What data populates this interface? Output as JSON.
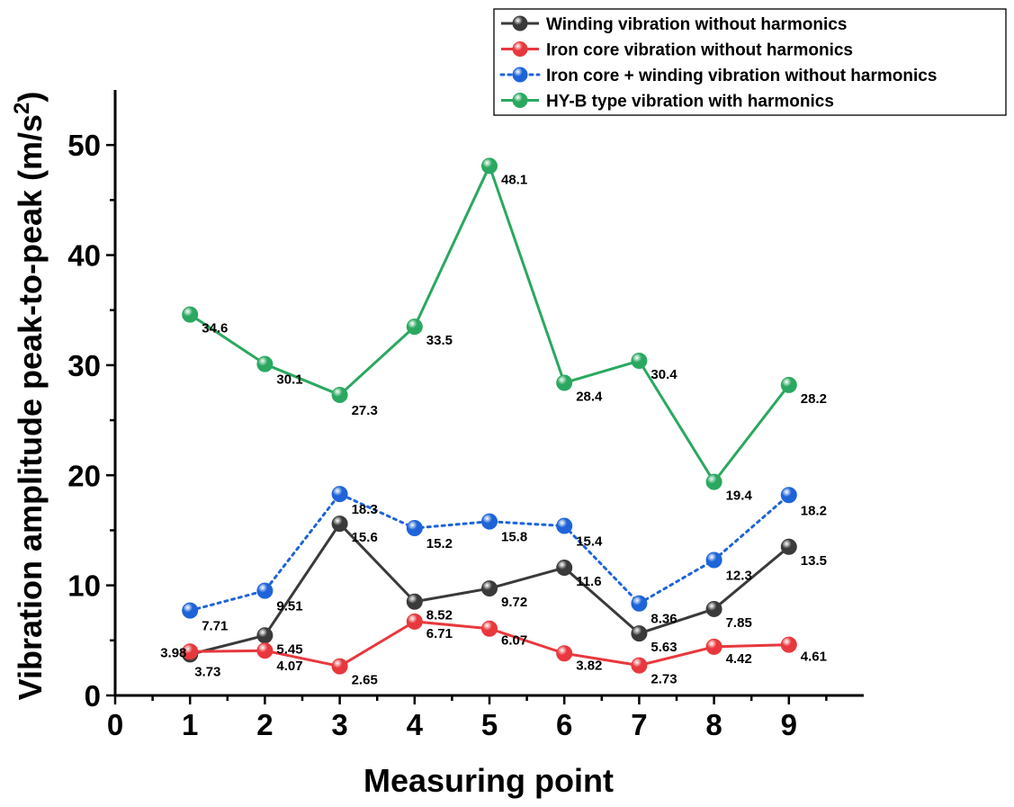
{
  "chart_data": {
    "type": "line",
    "xlabel": "Measuring point",
    "ylabel": "Vibration amplitude peak-to-peak (m/s²)",
    "ylabel_main": "Vibration amplitude peak-to-peak (m/s",
    "ylabel_sup": "2",
    "ylabel_close": ")",
    "xlim": [
      0,
      10
    ],
    "ylim": [
      0,
      55
    ],
    "x_ticks": [
      "0",
      "1",
      "2",
      "3",
      "4",
      "5",
      "6",
      "7",
      "8",
      "9"
    ],
    "y_ticks": [
      "0",
      "10",
      "20",
      "30",
      "40",
      "50"
    ],
    "x": [
      1,
      2,
      3,
      4,
      5,
      6,
      7,
      8,
      9
    ],
    "legend_position": "top-right",
    "series": [
      {
        "name": "Winding vibration without harmonics",
        "color": "#3a3a3a",
        "line_style": "solid",
        "values": [
          3.73,
          5.45,
          15.6,
          8.52,
          9.72,
          11.6,
          5.63,
          7.85,
          13.5
        ],
        "labels": [
          "3.73",
          "5.45",
          "15.6",
          "8.52",
          "9.72",
          "11.6",
          "5.63",
          "7.85",
          "13.5"
        ]
      },
      {
        "name": "Iron core vibration without harmonics",
        "color": "#e8383d",
        "line_style": "solid",
        "values": [
          3.98,
          4.07,
          2.65,
          6.71,
          6.07,
          3.82,
          2.73,
          4.42,
          4.61
        ],
        "labels": [
          "3.98",
          "4.07",
          "2.65",
          "6.71",
          "6.07",
          "3.82",
          "2.73",
          "4.42",
          "4.61"
        ]
      },
      {
        "name": "Iron core + winding vibration without harmonics",
        "color": "#1e64d8",
        "line_style": "dotted",
        "values": [
          7.71,
          9.51,
          18.3,
          15.2,
          15.8,
          15.4,
          8.36,
          12.3,
          18.2
        ],
        "labels": [
          "7.71",
          "9.51",
          "18.3",
          "15.2",
          "15.8",
          "15.4",
          "8.36",
          "12.3",
          "18.2"
        ]
      },
      {
        "name": "HY-B type vibration with harmonics",
        "color": "#2aa860",
        "line_style": "solid",
        "values": [
          34.6,
          30.1,
          27.3,
          33.5,
          48.1,
          28.4,
          30.4,
          19.4,
          28.2
        ],
        "labels": [
          "34.6",
          "30.1",
          "27.3",
          "33.5",
          "48.1",
          "28.4",
          "30.4",
          "19.4",
          "28.2"
        ]
      }
    ]
  }
}
